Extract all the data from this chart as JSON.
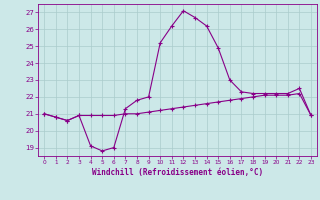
{
  "xlabel": "Windchill (Refroidissement éolien,°C)",
  "background_color": "#cce8e8",
  "grid_color": "#aacccc",
  "line_color": "#880088",
  "hours": [
    0,
    1,
    2,
    3,
    4,
    5,
    6,
    7,
    8,
    9,
    10,
    11,
    12,
    13,
    14,
    15,
    16,
    17,
    18,
    19,
    20,
    21,
    22,
    23
  ],
  "temp": [
    21.0,
    20.8,
    20.6,
    20.9,
    19.1,
    18.8,
    19.0,
    21.3,
    21.8,
    22.0,
    25.2,
    26.2,
    27.1,
    26.7,
    26.2,
    24.9,
    23.0,
    22.3,
    22.2,
    22.2,
    22.2,
    22.2,
    22.5,
    20.9
  ],
  "windchill": [
    21.0,
    20.8,
    20.6,
    20.9,
    20.9,
    20.9,
    20.9,
    21.0,
    21.0,
    21.1,
    21.2,
    21.3,
    21.4,
    21.5,
    21.6,
    21.7,
    21.8,
    21.9,
    22.0,
    22.1,
    22.1,
    22.1,
    22.2,
    20.9
  ],
  "ylim_min": 18.5,
  "ylim_max": 27.5,
  "yticks": [
    19,
    20,
    21,
    22,
    23,
    24,
    25,
    26,
    27
  ]
}
